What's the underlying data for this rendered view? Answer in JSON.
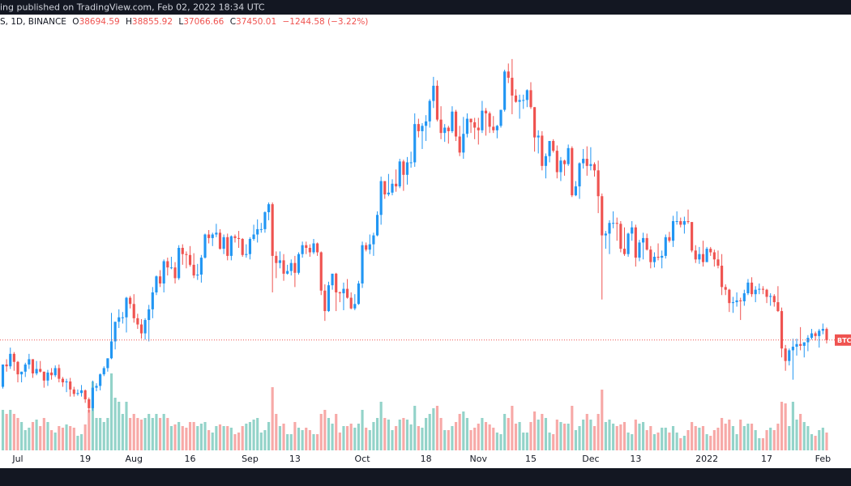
{
  "header": {
    "published": "ing published on TradingView.com, Feb 02, 2022 18:34 UTC",
    "symbol": "S, 1D, BINANCE",
    "ohlc_prefixes": [
      "O",
      "H",
      "L",
      "C"
    ],
    "change": "−1244.58 (−3.22%)",
    "price_tag": "BTC"
  },
  "chart_data": {
    "type": "candlestick",
    "up_color": "#2196f3",
    "down_color": "#ef5350",
    "volume_up_color": "#93d3c9",
    "volume_down_color": "#f7a9a7",
    "xlim": [
      -0.76,
      226.5
    ],
    "ylim": [
      24700,
      72900
    ],
    "y2lim": [
      0,
      200000
    ],
    "xticks": [
      {
        "value": 4,
        "label": "Jul"
      },
      {
        "value": 22,
        "label": "19"
      },
      {
        "value": 35,
        "label": "Aug"
      },
      {
        "value": 50,
        "label": "16"
      },
      {
        "value": 66,
        "label": "Sep"
      },
      {
        "value": 78,
        "label": "13"
      },
      {
        "value": 96,
        "label": "Oct"
      },
      {
        "value": 113,
        "label": "18"
      },
      {
        "value": 127,
        "label": "Nov"
      },
      {
        "value": 141,
        "label": "15"
      },
      {
        "value": 157,
        "label": "Dec"
      },
      {
        "value": 169,
        "label": "13"
      },
      {
        "value": 188,
        "label": "2022"
      },
      {
        "value": 204,
        "label": "17"
      },
      {
        "value": 219,
        "label": "Feb"
      }
    ],
    "open": [
      32200,
      34700,
      34500,
      35900,
      35000,
      33600,
      33900,
      34700,
      35300,
      33700,
      34200,
      33900,
      32900,
      33800,
      33500,
      34300,
      33100,
      32700,
      32800,
      31900,
      31400,
      31500,
      31800,
      30800,
      29800,
      32100,
      32300,
      33600,
      34300,
      35400,
      37300,
      39500,
      40000,
      40000,
      42200,
      41500,
      39900,
      39200,
      38200,
      39700,
      40900,
      42800,
      44600,
      43800,
      46300,
      45600,
      45600,
      44400,
      47800,
      47100,
      47000,
      45900,
      44700,
      44800,
      46700,
      49300,
      48900,
      49300,
      49500,
      47700,
      49000,
      46900,
      49100,
      48900,
      48800,
      47000,
      47100,
      48800,
      49300,
      49900,
      49900,
      51800,
      52700,
      46900,
      46100,
      46400,
      44900,
      45200,
      46100,
      45000,
      47100,
      48100,
      47800,
      47300,
      48300,
      47300,
      43000,
      40700,
      43600,
      44900,
      42800,
      42700,
      43200,
      42200,
      41000,
      41500,
      43800,
      48100,
      47600,
      48200,
      49200,
      51500,
      55300,
      53800,
      54000,
      55000,
      54700,
      57500,
      56000,
      57400,
      57400,
      61700,
      60900,
      61500,
      62000,
      64300,
      66000,
      62200,
      60700,
      61300,
      60900,
      63100,
      60300,
      58500,
      60600,
      62300,
      61900,
      61300,
      61000,
      63200,
      62900,
      61400,
      61000,
      61500,
      63300,
      67600,
      66900,
      64900,
      64200,
      64400,
      64400,
      65500,
      63600,
      60200,
      60400,
      57000,
      58100,
      59800,
      58700,
      56300,
      57600,
      57200,
      59000,
      53700,
      54700,
      57300,
      57800,
      57000,
      57200,
      56500,
      53600,
      49200,
      49400,
      50600,
      50600,
      50500,
      47700,
      47100,
      49400,
      50100,
      46700,
      48400,
      48900,
      47600,
      46200,
      46800,
      46700,
      46900,
      49000,
      48600,
      50800,
      50800,
      50400,
      50800,
      50700,
      47500,
      46500,
      47100,
      46200,
      47700,
      47300,
      46500,
      45800,
      43400,
      43100,
      41600,
      41700,
      41900,
      41800,
      42700,
      43900,
      42600,
      43100,
      43200,
      43100,
      42300,
      42400,
      41700,
      40700,
      36500,
      35100,
      36300,
      36700,
      37000,
      36800,
      37200,
      37700,
      38200,
      37900,
      38500,
      38694.59
    ],
    "high": [
      34700,
      35300,
      36600,
      36100,
      35100,
      33900,
      34900,
      35900,
      35300,
      35100,
      35100,
      33900,
      34100,
      34300,
      34600,
      34700,
      33300,
      33100,
      33200,
      32200,
      31900,
      32400,
      31900,
      31000,
      32900,
      32600,
      33700,
      34500,
      35400,
      40500,
      39500,
      40900,
      40600,
      42300,
      42400,
      42600,
      40400,
      39800,
      39900,
      41400,
      43400,
      44700,
      45300,
      46500,
      46700,
      46800,
      46200,
      48100,
      48200,
      47400,
      48000,
      47200,
      46000,
      47000,
      49400,
      49800,
      49500,
      50500,
      49900,
      49300,
      49400,
      49200,
      49300,
      49700,
      48900,
      48200,
      49000,
      50400,
      51000,
      50600,
      51900,
      52900,
      52900,
      47400,
      47400,
      47100,
      45900,
      46500,
      46900,
      47300,
      48500,
      48500,
      48200,
      48800,
      48400,
      47400,
      43700,
      44000,
      44900,
      45000,
      42900,
      43900,
      44300,
      42800,
      42600,
      44100,
      48500,
      48400,
      49300,
      49500,
      51900,
      55800,
      55300,
      56100,
      55500,
      56600,
      57800,
      57700,
      58000,
      58600,
      62900,
      62300,
      61800,
      62700,
      64500,
      67000,
      66600,
      63700,
      61700,
      61500,
      63700,
      63300,
      61500,
      62500,
      62900,
      62300,
      62400,
      62400,
      64300,
      63500,
      63100,
      62600,
      61600,
      63300,
      67800,
      68500,
      69000,
      65600,
      65000,
      65000,
      65600,
      66400,
      63600,
      61000,
      60900,
      58400,
      59800,
      60000,
      59300,
      58000,
      57700,
      59400,
      59200,
      55300,
      57400,
      58900,
      59200,
      59100,
      57400,
      57600,
      53900,
      49700,
      50900,
      51900,
      51200,
      50800,
      50100,
      49500,
      50800,
      50400,
      48700,
      49500,
      49400,
      48000,
      47300,
      48300,
      47500,
      49300,
      49600,
      51400,
      51900,
      51200,
      51300,
      52100,
      50700,
      48100,
      47900,
      48600,
      47900,
      47900,
      47600,
      47500,
      47100,
      43700,
      43200,
      42300,
      42800,
      42200,
      43100,
      44300,
      44500,
      43500,
      43800,
      43500,
      43200,
      42700,
      42600,
      43500,
      41100,
      36900,
      36500,
      37600,
      37600,
      38900,
      37200,
      38000,
      38700,
      38400,
      38700,
      39300,
      38855.92
    ],
    "low": [
      32000,
      33900,
      34200,
      34000,
      32700,
      32700,
      33300,
      34200,
      33200,
      33500,
      33800,
      32100,
      32300,
      33000,
      33300,
      32700,
      32200,
      31600,
      31100,
      31100,
      31200,
      31100,
      30400,
      29300,
      29500,
      31700,
      31800,
      33400,
      33900,
      35300,
      36400,
      38800,
      39300,
      38300,
      41000,
      39400,
      38700,
      37600,
      37500,
      37300,
      39900,
      42500,
      43400,
      42800,
      44700,
      45400,
      43800,
      44200,
      45900,
      45500,
      45700,
      44400,
      44200,
      43900,
      46600,
      48300,
      48000,
      49000,
      47600,
      47100,
      46400,
      46400,
      48400,
      47800,
      46800,
      46700,
      46500,
      48600,
      48400,
      49500,
      49500,
      50900,
      42800,
      44400,
      45500,
      44100,
      44800,
      44700,
      43400,
      44800,
      46700,
      47100,
      46800,
      47100,
      46900,
      42500,
      39600,
      40600,
      43100,
      40700,
      41700,
      40800,
      42100,
      40900,
      40800,
      41400,
      43300,
      47400,
      47100,
      46900,
      49100,
      50400,
      53300,
      53600,
      53700,
      54100,
      54500,
      54200,
      54900,
      56800,
      56900,
      60200,
      58900,
      59800,
      61300,
      63500,
      62000,
      60000,
      59700,
      59500,
      60700,
      59800,
      58100,
      57800,
      60200,
      60700,
      60000,
      59400,
      60700,
      60400,
      60700,
      60700,
      60100,
      61300,
      63100,
      66300,
      62800,
      64100,
      62300,
      63400,
      63600,
      63400,
      58600,
      58400,
      56500,
      55600,
      57400,
      58500,
      55600,
      55300,
      55900,
      57000,
      53500,
      53600,
      53300,
      56700,
      55900,
      56500,
      55800,
      51700,
      42000,
      47700,
      47100,
      50000,
      48600,
      47300,
      46900,
      46800,
      48600,
      45700,
      46300,
      46500,
      47500,
      45500,
      45600,
      46400,
      45500,
      46600,
      48400,
      47900,
      50400,
      50100,
      49400,
      50500,
      47300,
      46100,
      46000,
      45700,
      46200,
      46900,
      45700,
      45500,
      42500,
      42500,
      40600,
      40500,
      41200,
      39700,
      41300,
      42500,
      42300,
      41700,
      42600,
      42600,
      41600,
      41300,
      41200,
      40600,
      35500,
      34000,
      34600,
      33000,
      35700,
      36300,
      35500,
      36200,
      37500,
      37400,
      36600,
      38100,
      37066.66
    ],
    "close": [
      34700,
      34500,
      35900,
      35000,
      33600,
      33900,
      34700,
      35300,
      33700,
      34200,
      33900,
      32900,
      33800,
      33500,
      34300,
      33100,
      32700,
      32800,
      31900,
      31400,
      31500,
      31800,
      30800,
      29800,
      32100,
      32300,
      33600,
      34300,
      35400,
      37300,
      39500,
      40000,
      40000,
      42200,
      41500,
      39900,
      39200,
      38200,
      39700,
      40900,
      42800,
      44600,
      43800,
      46300,
      45600,
      45600,
      44400,
      47800,
      47100,
      47000,
      45900,
      44700,
      44800,
      46700,
      49300,
      48900,
      49300,
      49500,
      47700,
      49000,
      46900,
      49100,
      48900,
      48800,
      47000,
      47100,
      48800,
      49300,
      49900,
      49900,
      51800,
      52700,
      46900,
      46100,
      46400,
      44900,
      45200,
      46100,
      45000,
      47100,
      48100,
      47800,
      47300,
      48300,
      47300,
      43000,
      40700,
      43600,
      44900,
      42800,
      42700,
      43200,
      42200,
      41000,
      41500,
      43800,
      48100,
      47600,
      48200,
      49200,
      51500,
      55300,
      53800,
      54000,
      55000,
      54700,
      57500,
      56000,
      57400,
      57400,
      61700,
      60900,
      61500,
      62000,
      64300,
      66000,
      62200,
      60700,
      61300,
      60900,
      63100,
      60300,
      58500,
      60600,
      62300,
      61900,
      61300,
      61000,
      63200,
      62900,
      61400,
      61000,
      61500,
      63300,
      67600,
      66900,
      64900,
      64200,
      64400,
      64400,
      65500,
      63600,
      60200,
      60400,
      57000,
      58100,
      59800,
      58700,
      56300,
      57600,
      57200,
      59000,
      53700,
      54700,
      57300,
      57800,
      57000,
      57200,
      56500,
      53600,
      49200,
      49400,
      50600,
      50600,
      50500,
      47700,
      47100,
      49400,
      50100,
      46700,
      48400,
      48900,
      47600,
      46200,
      46800,
      46700,
      46900,
      49000,
      48600,
      50800,
      50800,
      50400,
      50800,
      50700,
      47500,
      46500,
      47100,
      46200,
      47700,
      47300,
      46500,
      45800,
      43400,
      43100,
      41600,
      41700,
      41900,
      41800,
      42700,
      43900,
      42600,
      43100,
      43200,
      43100,
      42300,
      42400,
      41700,
      40700,
      36500,
      35100,
      36300,
      36700,
      37000,
      36800,
      37200,
      37700,
      38200,
      37900,
      38500,
      38700,
      37450.01
    ],
    "volume": {
      "axis": "y2",
      "values": [
        50000,
        45000,
        50000,
        45000,
        40000,
        35000,
        25000,
        28000,
        35000,
        38000,
        30000,
        40000,
        35000,
        25000,
        22000,
        30000,
        28000,
        32000,
        30000,
        28000,
        18000,
        20000,
        32000,
        50000,
        85000,
        40000,
        40000,
        35000,
        40000,
        95000,
        65000,
        60000,
        45000,
        60000,
        40000,
        45000,
        40000,
        38000,
        40000,
        45000,
        40000,
        45000,
        40000,
        45000,
        40000,
        30000,
        32000,
        35000,
        30000,
        28000,
        35000,
        35000,
        30000,
        33000,
        35000,
        25000,
        22000,
        30000,
        32000,
        30000,
        30000,
        28000,
        20000,
        22000,
        30000,
        33000,
        35000,
        38000,
        40000,
        22000,
        25000,
        35000,
        78000,
        45000,
        30000,
        33000,
        20000,
        20000,
        35000,
        28000,
        25000,
        28000,
        25000,
        20000,
        20000,
        45000,
        50000,
        40000,
        33000,
        45000,
        22000,
        30000,
        30000,
        33000,
        28000,
        33000,
        50000,
        28000,
        25000,
        35000,
        40000,
        60000,
        40000,
        38000,
        25000,
        30000,
        38000,
        40000,
        38000,
        32000,
        55000,
        30000,
        28000,
        40000,
        45000,
        52000,
        55000,
        40000,
        25000,
        25000,
        30000,
        35000,
        45000,
        48000,
        40000,
        25000,
        28000,
        33000,
        40000,
        35000,
        32000,
        28000,
        22000,
        20000,
        45000,
        40000,
        55000,
        33000,
        35000,
        22000,
        22000,
        35000,
        48000,
        38000,
        45000,
        40000,
        22000,
        20000,
        38000,
        35000,
        33000,
        33000,
        55000,
        25000,
        30000,
        38000,
        45000,
        38000,
        30000,
        45000,
        75000,
        35000,
        38000,
        33000,
        30000,
        32000,
        35000,
        22000,
        20000,
        38000,
        33000,
        35000,
        25000,
        30000,
        20000,
        22000,
        28000,
        28000,
        22000,
        30000,
        22000,
        15000,
        18000,
        25000,
        35000,
        30000,
        28000,
        30000,
        20000,
        18000,
        25000,
        28000,
        40000,
        33000,
        38000,
        30000,
        20000,
        38000,
        30000,
        33000,
        33000,
        25000,
        15000,
        15000,
        25000,
        28000,
        25000,
        33000,
        60000,
        58000,
        30000,
        60000,
        38000,
        45000,
        35000,
        30000,
        20000,
        18000,
        25000,
        28000,
        22000
      ]
    }
  }
}
